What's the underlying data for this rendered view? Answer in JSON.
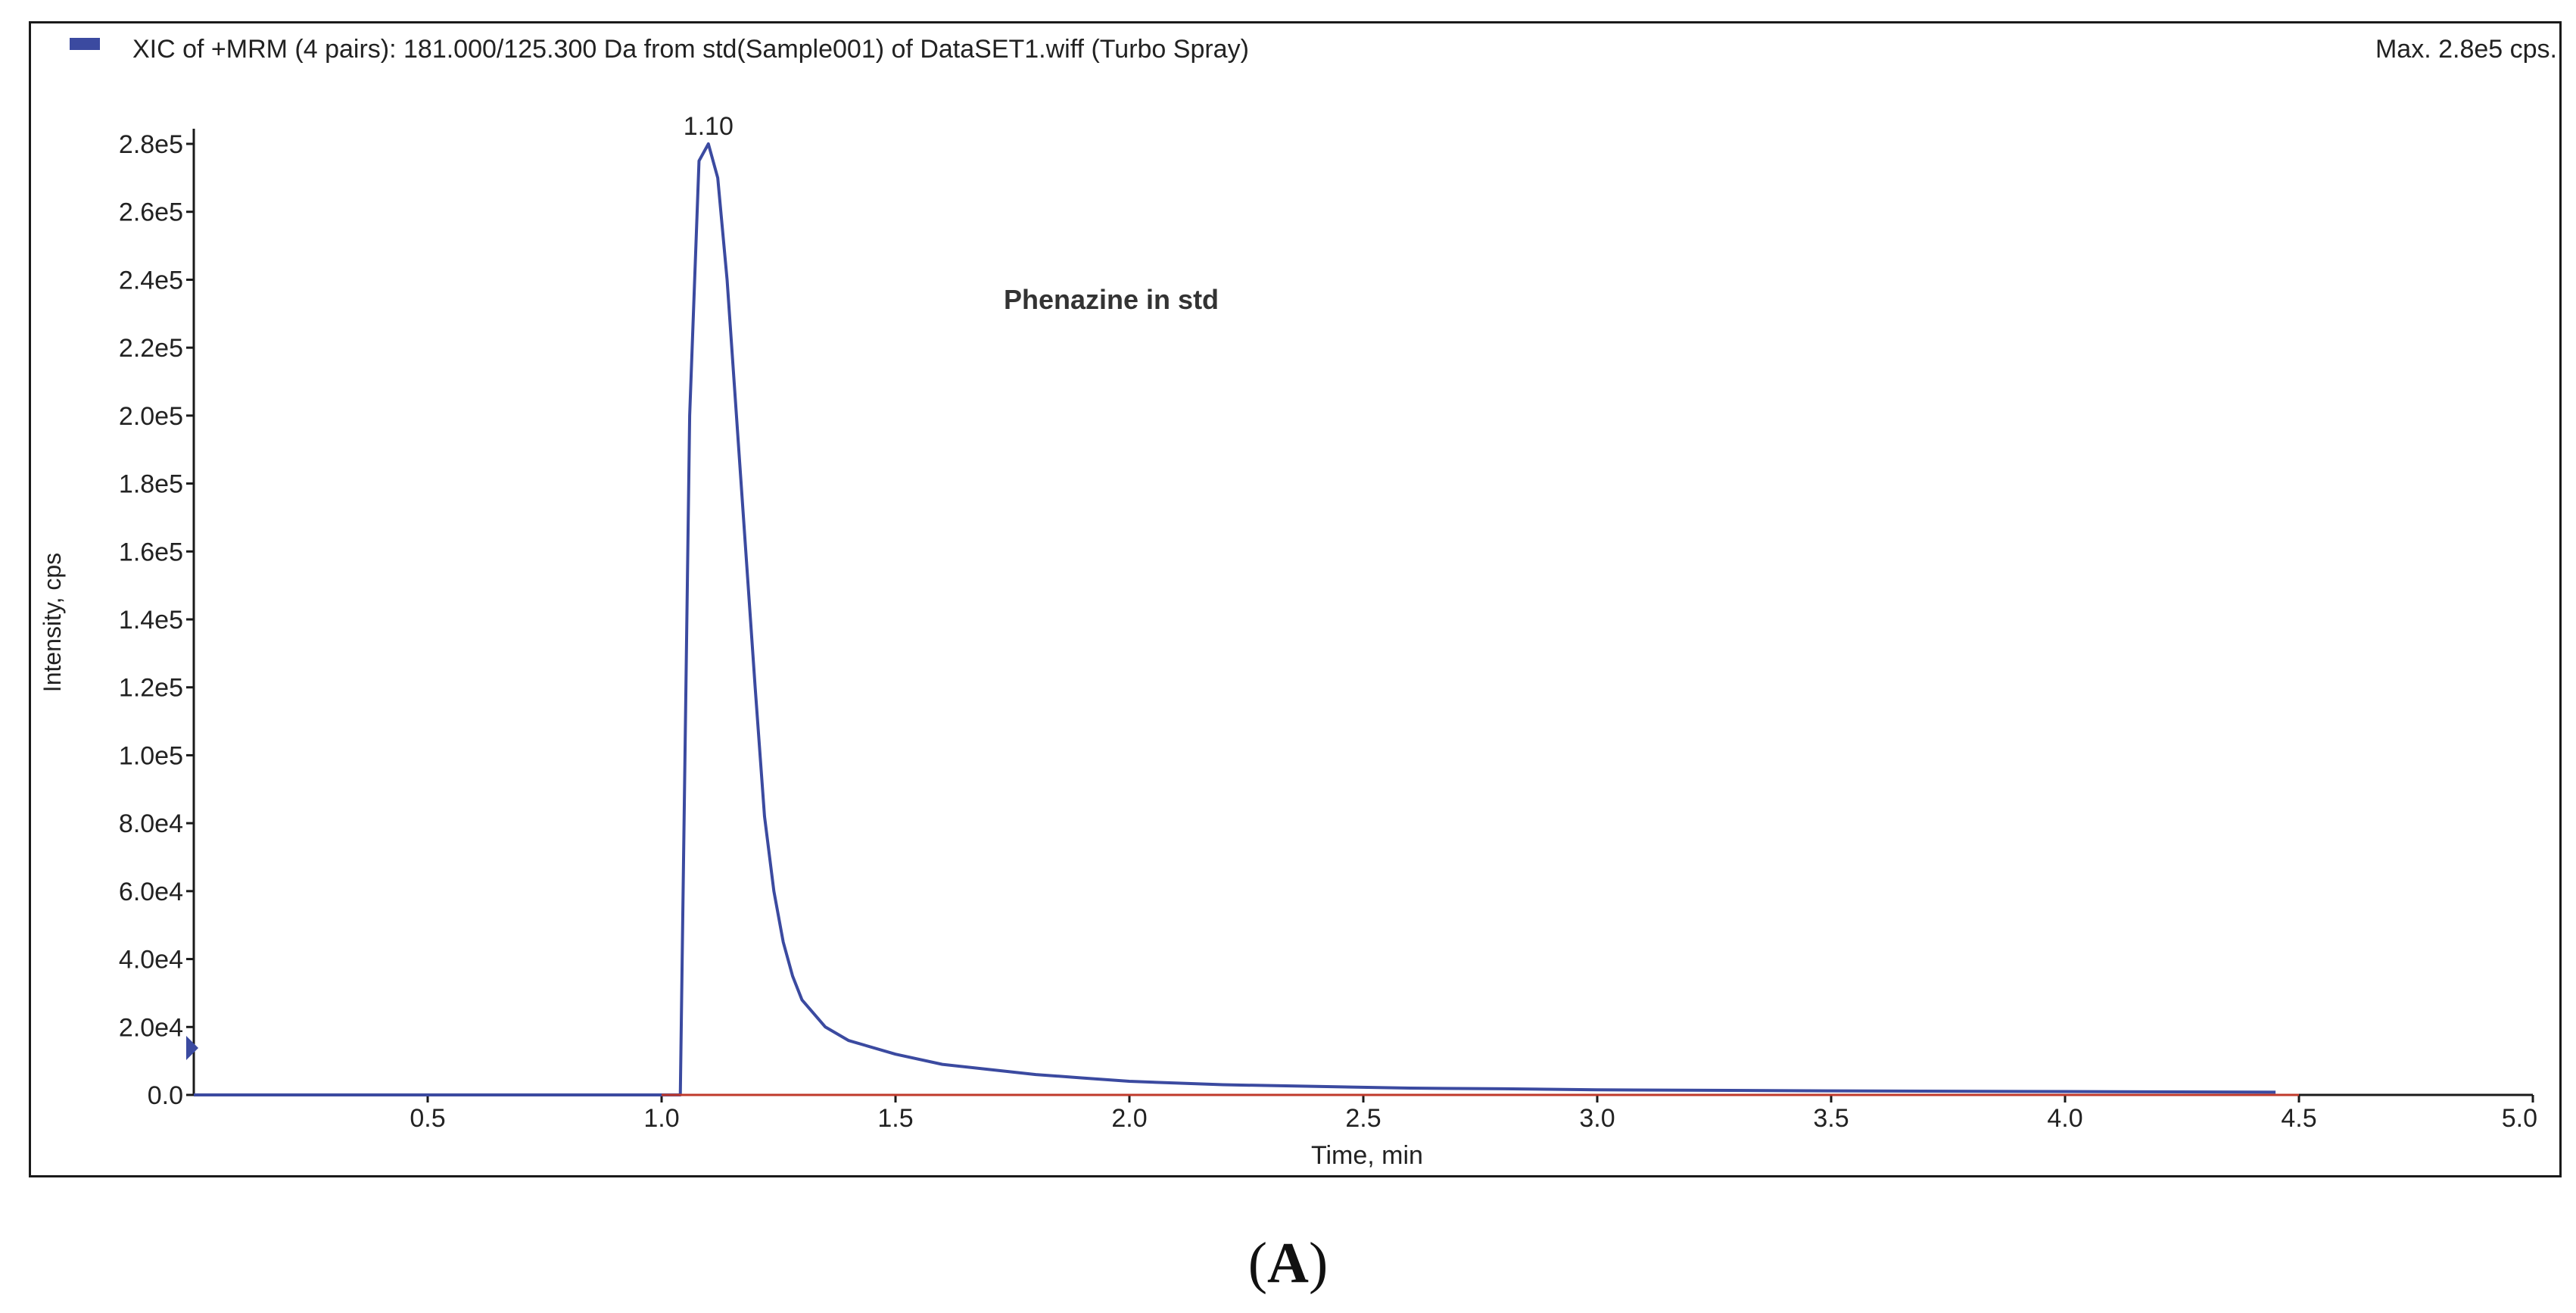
{
  "header": {
    "xic_title": "XIC of +MRM (4 pairs): 181.000/125.300 Da from std(Sample001) of DataSET1.wiff (Turbo Spray)",
    "max_label": "Max. 2.8e5 cps."
  },
  "panel": {
    "open": "(",
    "letter": "A",
    "close": ")"
  },
  "colors": {
    "trace": "#3b4aa0",
    "baseline": "#c0392b",
    "axis": "#1a1a1a",
    "text": "#222222"
  },
  "chart_data": {
    "type": "line",
    "annotation": "Phenazine in std",
    "peak_label": "1.10",
    "peak_label_x": 1.1,
    "xlabel": "Time, min",
    "ylabel": "Intensity, cps",
    "xlim": [
      0,
      5.0
    ],
    "ylim": [
      0,
      280000
    ],
    "grid": false,
    "legend": "top-left",
    "x_ticks": [
      {
        "v": 0.5,
        "label": "0.5"
      },
      {
        "v": 1.0,
        "label": "1.0"
      },
      {
        "v": 1.5,
        "label": "1.5"
      },
      {
        "v": 2.0,
        "label": "2.0"
      },
      {
        "v": 2.5,
        "label": "2.5"
      },
      {
        "v": 3.0,
        "label": "3.0"
      },
      {
        "v": 3.5,
        "label": "3.5"
      },
      {
        "v": 4.0,
        "label": "4.0"
      },
      {
        "v": 4.5,
        "label": "4.5"
      },
      {
        "v": 5.0,
        "label": "5.0"
      }
    ],
    "y_ticks": [
      {
        "v": 0,
        "label": "0.0"
      },
      {
        "v": 20000,
        "label": "2.0e4"
      },
      {
        "v": 40000,
        "label": "4.0e4"
      },
      {
        "v": 60000,
        "label": "6.0e4"
      },
      {
        "v": 80000,
        "label": "8.0e4"
      },
      {
        "v": 100000,
        "label": "1.0e5"
      },
      {
        "v": 120000,
        "label": "1.2e5"
      },
      {
        "v": 140000,
        "label": "1.4e5"
      },
      {
        "v": 160000,
        "label": "1.6e5"
      },
      {
        "v": 180000,
        "label": "1.8e5"
      },
      {
        "v": 200000,
        "label": "2.0e5"
      },
      {
        "v": 220000,
        "label": "2.2e5"
      },
      {
        "v": 240000,
        "label": "2.4e5"
      },
      {
        "v": 260000,
        "label": "2.6e5"
      },
      {
        "v": 280000,
        "label": "2.8e5"
      }
    ],
    "series": [
      {
        "color": "#3b4aa0",
        "x": [
          0.0,
          1.0,
          1.04,
          1.06,
          1.08,
          1.1,
          1.12,
          1.14,
          1.16,
          1.18,
          1.2,
          1.22,
          1.24,
          1.26,
          1.28,
          1.3,
          1.35,
          1.4,
          1.5,
          1.6,
          1.7,
          1.8,
          1.9,
          2.0,
          2.2,
          2.4,
          2.6,
          2.8,
          3.0,
          3.5,
          4.0,
          4.45
        ],
        "y": [
          0,
          0,
          0,
          200000,
          275000,
          280000,
          270000,
          240000,
          200000,
          160000,
          120000,
          82000,
          60000,
          45000,
          35000,
          28000,
          20000,
          16000,
          12000,
          9000,
          7500,
          6000,
          5000,
          4000,
          3000,
          2500,
          2000,
          1800,
          1500,
          1200,
          1000,
          800
        ]
      },
      {
        "color": "#c0392b",
        "x": [
          1.0,
          4.5
        ],
        "y": [
          0,
          0
        ]
      }
    ]
  }
}
